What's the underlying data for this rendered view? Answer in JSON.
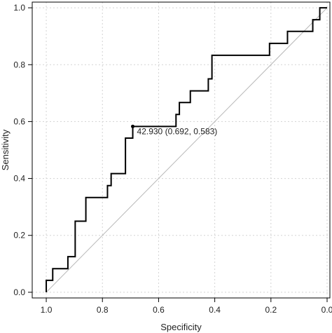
{
  "chart_data": {
    "type": "line",
    "xlabel": "Specificity",
    "ylabel": "Sensitivity",
    "xlim": [
      1.05,
      -0.01
    ],
    "ylim": [
      -0.02,
      1.02
    ],
    "x_ticks": [
      1.0,
      0.8,
      0.6,
      0.4,
      0.2,
      0.0
    ],
    "x_tick_labels": [
      "1.0",
      "0.8",
      "0.6",
      "0.4",
      "0.2",
      "0.0"
    ],
    "y_ticks": [
      0.0,
      0.2,
      0.4,
      0.6,
      0.8,
      1.0
    ],
    "y_tick_labels": [
      "0.0",
      "0.2",
      "0.4",
      "0.6",
      "0.8",
      "1.0"
    ],
    "grid": true,
    "reference_line": {
      "from": [
        1.0,
        0.0
      ],
      "to": [
        0.0,
        1.0
      ],
      "color": "#b8b8b8"
    },
    "series": [
      {
        "x": [
          1.0,
          1.0,
          0.977,
          0.977,
          0.923,
          0.923,
          0.897,
          0.897,
          0.859,
          0.859,
          0.782,
          0.782,
          0.769,
          0.769,
          0.718,
          0.718,
          0.692,
          0.692,
          0.538,
          0.538,
          0.526,
          0.526,
          0.487,
          0.487,
          0.423,
          0.423,
          0.41,
          0.41,
          0.205,
          0.205,
          0.141,
          0.141,
          0.051,
          0.051,
          0.026,
          0.026,
          0.0
        ],
        "y": [
          0.0,
          0.042,
          0.042,
          0.083,
          0.083,
          0.125,
          0.125,
          0.25,
          0.25,
          0.333,
          0.333,
          0.375,
          0.375,
          0.417,
          0.417,
          0.542,
          0.542,
          0.583,
          0.583,
          0.625,
          0.625,
          0.667,
          0.667,
          0.708,
          0.708,
          0.75,
          0.75,
          0.833,
          0.833,
          0.875,
          0.875,
          0.917,
          0.917,
          0.958,
          0.958,
          1.0,
          1.0
        ],
        "color": "#000000"
      }
    ],
    "annotations": [
      {
        "x": 0.692,
        "y": 0.583,
        "text": "42.930 (0.692, 0.583)"
      }
    ]
  }
}
